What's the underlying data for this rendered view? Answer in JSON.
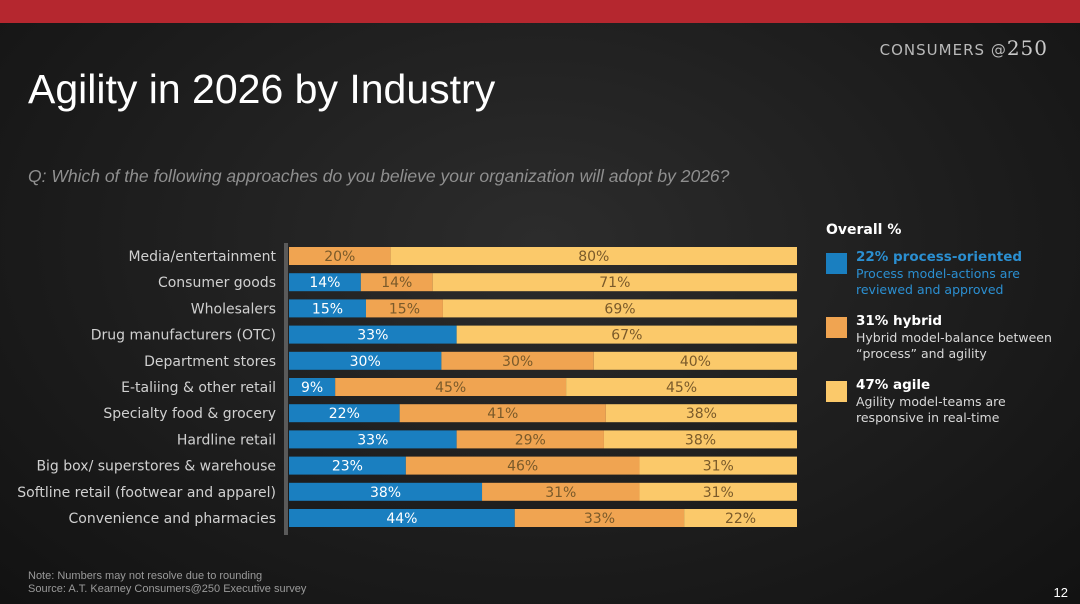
{
  "brand": {
    "text": "CONSUMERS",
    "at": "@",
    "num": "250"
  },
  "title": "Agility in 2026 by Industry",
  "question": "Q: Which of the following approaches do you believe your organization will adopt by 2026?",
  "legend": {
    "title": "Overall %",
    "items": [
      {
        "head": "22% process-oriented",
        "desc": "Process model-actions are reviewed and approved",
        "color": "#1a7fc0",
        "head_color": "#2b8fd1",
        "desc_color": "#2b8fd1"
      },
      {
        "head": "31% hybrid",
        "desc": "Hybrid model-balance between “process” and agility",
        "color": "#f0a451",
        "head_color": "#ffffff",
        "desc_color": "#d9d9d9"
      },
      {
        "head": "47% agile",
        "desc": "Agility model-teams are responsive in real-time",
        "color": "#fbc96a",
        "head_color": "#ffffff",
        "desc_color": "#d9d9d9"
      }
    ]
  },
  "chart_data": {
    "type": "bar",
    "orientation": "horizontal",
    "stacked": true,
    "categories": [
      "Media/entertainment",
      "Consumer goods",
      "Wholesalers",
      "Drug manufacturers (OTC)",
      "Department stores",
      "E-taliing & other retail",
      "Specialty food & grocery",
      "Hardline retail",
      "Big box/ superstores & warehouse",
      "Softline retail (footwear and apparel)",
      "Convenience and pharmacies"
    ],
    "series": [
      {
        "name": "process-oriented",
        "color": "#1a7fc0",
        "values": [
          0,
          14,
          15,
          33,
          30,
          9,
          22,
          33,
          23,
          38,
          44
        ]
      },
      {
        "name": "hybrid",
        "color": "#f0a451",
        "values": [
          20,
          14,
          15,
          0,
          30,
          45,
          41,
          29,
          46,
          31,
          33
        ]
      },
      {
        "name": "agile",
        "color": "#fbc96a",
        "values": [
          80,
          71,
          69,
          67,
          40,
          45,
          38,
          38,
          31,
          31,
          22
        ]
      }
    ],
    "value_suffix": "%",
    "label_dark_on": [
      "hybrid",
      "agile"
    ]
  },
  "note": "Note: Numbers may not resolve due to rounding",
  "source": "Source: A.T. Kearney Consumers@250 Executive survey",
  "page_number": "12"
}
